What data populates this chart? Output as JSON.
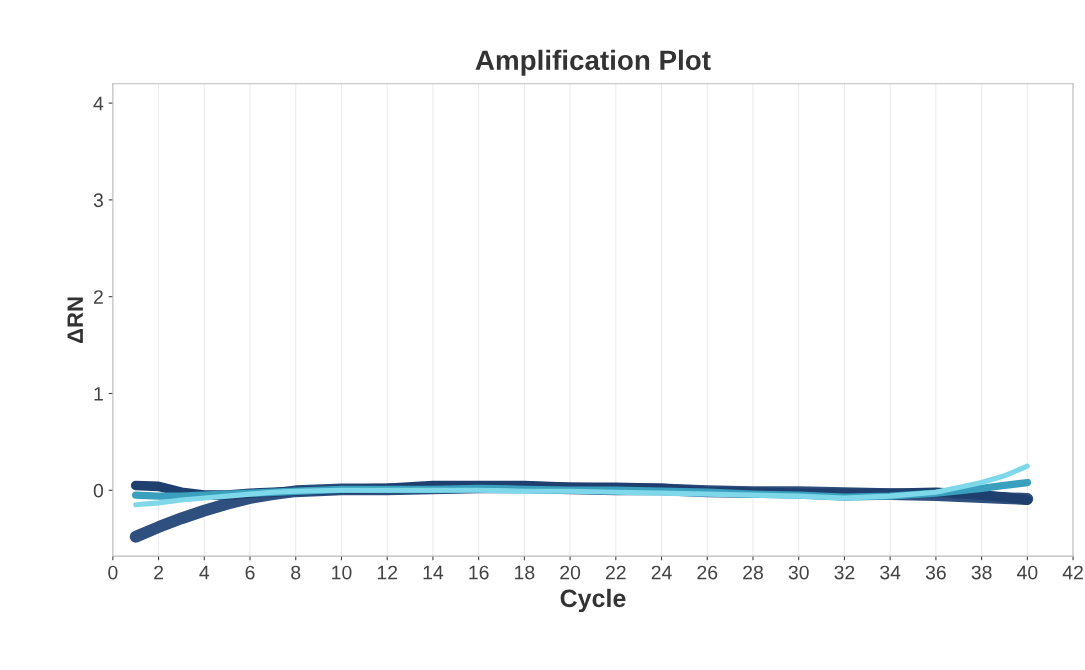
{
  "chart_data": {
    "type": "line",
    "title": "Amplification Plot",
    "xlabel": "Cycle",
    "ylabel": "ΔRN",
    "x": [
      1,
      2,
      3,
      4,
      5,
      6,
      7,
      8,
      10,
      12,
      14,
      16,
      18,
      20,
      22,
      24,
      26,
      28,
      30,
      32,
      34,
      36,
      38,
      39,
      40
    ],
    "series": [
      {
        "color": "#2f4f7f",
        "values": [
          -0.48,
          -0.38,
          -0.29,
          -0.21,
          -0.14,
          -0.08,
          -0.04,
          -0.01,
          0.01,
          0.01,
          0.02,
          0.03,
          0.03,
          0.02,
          0.01,
          0.01,
          -0.01,
          -0.02,
          -0.02,
          -0.03,
          -0.04,
          -0.05,
          -0.07,
          -0.08,
          -0.09
        ]
      },
      {
        "color": "#1f3f6f",
        "values": [
          0.05,
          0.04,
          -0.02,
          -0.05,
          -0.05,
          -0.03,
          -0.02,
          -0.01,
          0.01,
          0.02,
          0.05,
          0.05,
          0.05,
          0.03,
          0.03,
          0.02,
          -0.01,
          -0.02,
          -0.03,
          -0.03,
          -0.03,
          -0.02,
          -0.05,
          -0.07,
          -0.1
        ]
      },
      {
        "color": "#3aa0be",
        "values": [
          -0.05,
          -0.06,
          -0.06,
          -0.05,
          -0.04,
          -0.03,
          -0.02,
          -0.01,
          0.01,
          0.01,
          0.01,
          0.02,
          0.01,
          0.0,
          0.0,
          -0.01,
          -0.02,
          -0.04,
          -0.05,
          -0.07,
          -0.06,
          -0.03,
          0.02,
          0.05,
          0.08
        ]
      },
      {
        "color": "#7fd8ea",
        "values": [
          -0.15,
          -0.13,
          -0.1,
          -0.08,
          -0.06,
          -0.04,
          -0.02,
          -0.01,
          0.0,
          0.0,
          0.0,
          0.0,
          -0.01,
          -0.01,
          -0.02,
          -0.03,
          -0.04,
          -0.05,
          -0.06,
          -0.08,
          -0.06,
          -0.02,
          0.08,
          0.15,
          0.25
        ]
      }
    ],
    "xlim": [
      0,
      42
    ],
    "xticks": [
      0,
      2,
      4,
      6,
      8,
      10,
      12,
      14,
      16,
      18,
      20,
      22,
      24,
      26,
      28,
      30,
      32,
      34,
      36,
      38,
      40,
      42
    ],
    "ylim": [
      -0.68,
      4.2
    ],
    "yticks": [
      0,
      1,
      2,
      3,
      4
    ],
    "grid": "x",
    "marker": "none",
    "line_style": "solid"
  }
}
